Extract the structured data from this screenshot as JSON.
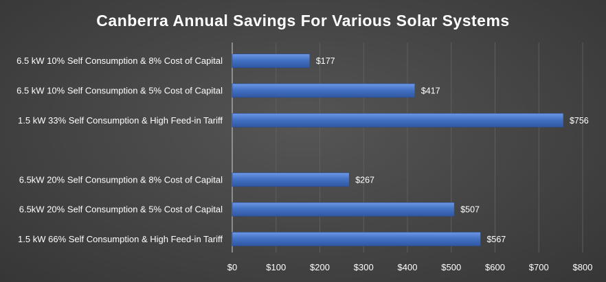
{
  "chart_data": {
    "type": "bar",
    "orientation": "horizontal",
    "title": "Canberra Annual Savings For Various Solar Systems",
    "xlabel": "",
    "ylabel": "",
    "categories": [
      "6.5 kW 10% Self Consumption & 8% Cost of Capital",
      "6.5 kW 10% Self Consumption & 5% Cost of Capital",
      "1.5 kW 33% Self Consumption & High Feed-in Tariff",
      "",
      "6.5kW 20% Self Consumption & 8% Cost of Capital",
      "6.5kW 20% Self Consumption & 5% Cost of Capital",
      "1.5 kW 66% Self Consumption & High Feed-in Tariff"
    ],
    "values": [
      177,
      417,
      756,
      null,
      267,
      507,
      567
    ],
    "value_labels": [
      "$177",
      "$417",
      "$756",
      "",
      "$267",
      "$507",
      "$567"
    ],
    "xlim": [
      0,
      800
    ],
    "x_ticks": [
      0,
      100,
      200,
      300,
      400,
      500,
      600,
      700,
      800
    ],
    "x_tick_labels": [
      "$0",
      "$100",
      "$200",
      "$300",
      "$400",
      "$500",
      "$600",
      "$700",
      "$800"
    ],
    "grid": true,
    "legend": "none",
    "colors": {
      "bar": "#4472C4",
      "background": "#404040",
      "text": "#ffffff",
      "gridline": "#5e5e5e"
    }
  }
}
